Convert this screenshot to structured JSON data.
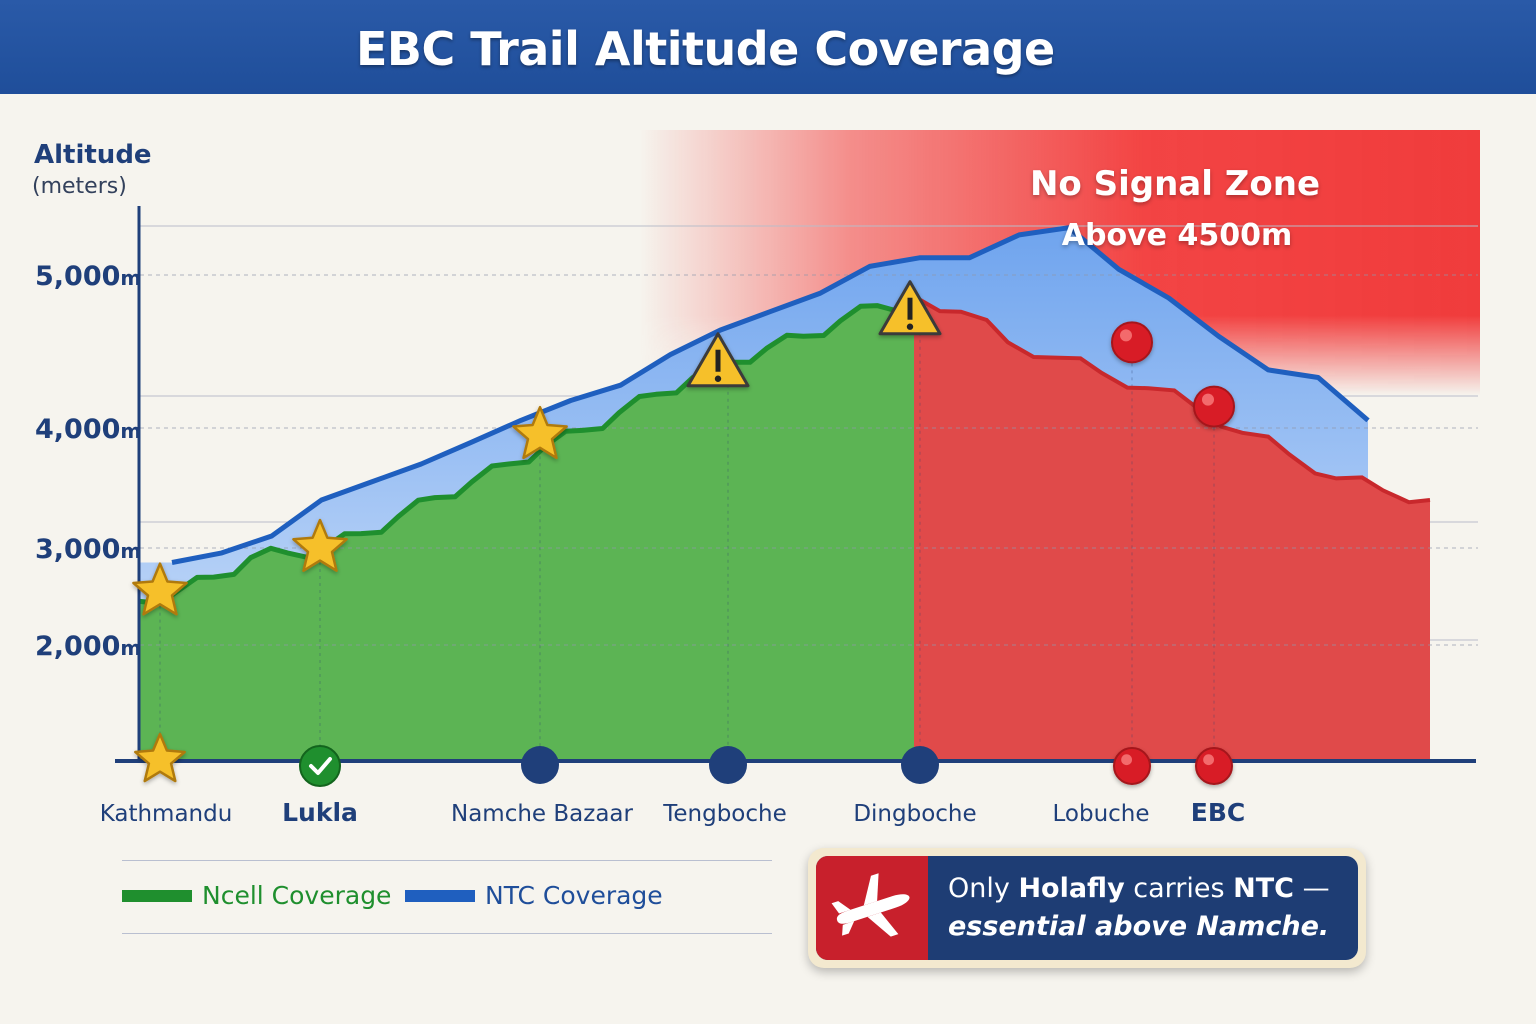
{
  "header": {
    "title": "EBC Trail Altitude Coverage"
  },
  "y_axis": {
    "title": "Altitude",
    "unit": "(meters)"
  },
  "zone": {
    "title": "No Signal Zone",
    "subtitle": "Above 4500m"
  },
  "legend": {
    "ncell": {
      "label": "Ncell Coverage",
      "color": "#1f8f2e"
    },
    "ntc": {
      "label": "NTC Coverage",
      "color": "#1f5fbf"
    }
  },
  "callout": {
    "icon": "airplane-icon",
    "line1_a": "Only ",
    "line1_b": "Holafly",
    "line1_c": " carries ",
    "line1_d": "NTC",
    "line1_e": " —",
    "line2": "essential above Namche."
  },
  "chart_data": {
    "type": "area",
    "title": "EBC Trail Altitude Coverage",
    "ylabel": "Altitude (meters)",
    "ylim": [
      1250,
      5300
    ],
    "yticks": [
      {
        "value": 2000,
        "num": "2,000",
        "unit": "m"
      },
      {
        "value": 3000,
        "num": "3,000",
        "unit": "m"
      },
      {
        "value": 4000,
        "num": "4,000",
        "unit": "m"
      },
      {
        "value": 5000,
        "num": "5,000",
        "unit": "m"
      }
    ],
    "grid": true,
    "locations": [
      {
        "name": "Kathmandu",
        "marker": "star",
        "altitude": 2550,
        "altitude_marker": "star",
        "bold": false
      },
      {
        "name": "Lukla",
        "marker": "check",
        "altitude": 3000,
        "altitude_marker": "star",
        "bold": true
      },
      {
        "name": "Namche Bazaar",
        "marker": "dot",
        "altitude": 3940,
        "altitude_marker": "star",
        "bold": false
      },
      {
        "name": "Tengboche",
        "marker": "dot",
        "altitude": 4420,
        "altitude_marker": "warning",
        "bold": false
      },
      {
        "name": "Dingboche",
        "marker": "dot",
        "altitude": 4760,
        "altitude_marker": "warning",
        "bold": false
      },
      {
        "name": "Lobuche",
        "marker": "red-dot",
        "altitude": 4560,
        "altitude_marker": "red-dot",
        "bold": false
      },
      {
        "name": "EBC",
        "marker": "red-dot",
        "altitude": 4140,
        "altitude_marker": "red-dot",
        "bold": true
      }
    ],
    "series": [
      {
        "name": "Ncell Coverage",
        "color": "#1f8f2e",
        "values": [
          2450,
          2550,
          2700,
          2900,
          2950,
          3000,
          3120,
          3260,
          3420,
          3550,
          3700,
          3850,
          3980,
          4100,
          4220,
          4330,
          4430,
          4520,
          4600,
          4700,
          4800,
          4820
        ]
      },
      {
        "name": "NTC Coverage",
        "color": "#1f5fbf",
        "values": [
          2850,
          2950,
          3100,
          3400,
          3550,
          3700,
          3880,
          4050,
          4180,
          4280,
          4480,
          4640,
          4760,
          4880,
          5060,
          5120,
          5120,
          5280,
          5330,
          5040,
          4850,
          4600,
          4380,
          4330,
          4050
        ]
      },
      {
        "name": "No Signal",
        "color": "#e04a4a",
        "values": [
          4860,
          4760,
          4560,
          4460,
          4360,
          4260,
          4140,
          3960,
          3780,
          3580,
          3480,
          3400
        ]
      }
    ]
  }
}
